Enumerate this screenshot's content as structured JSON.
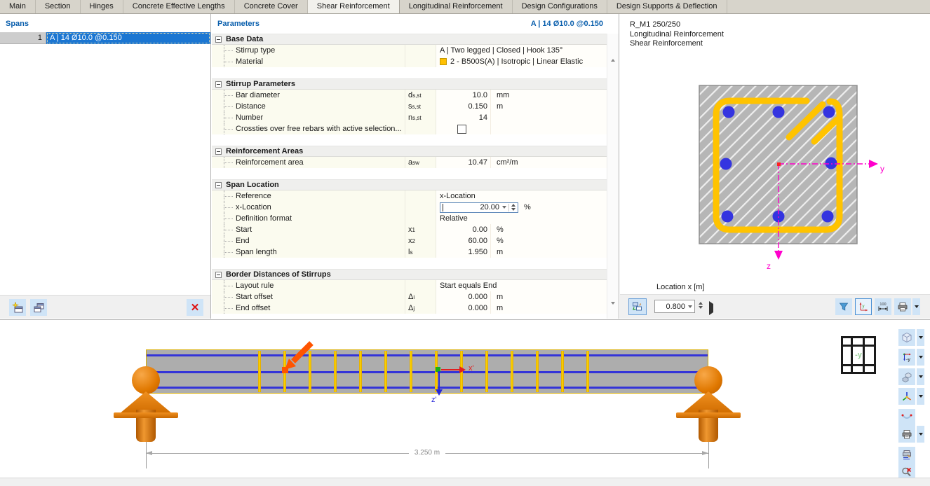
{
  "tabs": [
    {
      "label": "Main"
    },
    {
      "label": "Section"
    },
    {
      "label": "Hinges"
    },
    {
      "label": "Concrete Effective Lengths"
    },
    {
      "label": "Concrete Cover"
    },
    {
      "label": "Shear Reinforcement",
      "active": true
    },
    {
      "label": "Longitudinal Reinforcement"
    },
    {
      "label": "Design Configurations"
    },
    {
      "label": "Design Supports & Deflection"
    }
  ],
  "spans": {
    "title": "Spans",
    "rows": [
      {
        "num": "1",
        "label": "A | 14 Ø10.0 @0.150"
      }
    ]
  },
  "parameters": {
    "title": "Parameters",
    "selection": "A | 14 Ø10.0 @0.150",
    "groups": [
      {
        "title": "Base Data",
        "rows": [
          {
            "label": "Stirrup type",
            "value": "A | Two legged | Closed | Hook 135°"
          },
          {
            "label": "Material",
            "value": "2 - B500S(A) | Isotropic | Linear Elastic",
            "swatch": "#ffc000"
          }
        ]
      },
      {
        "title": "Stirrup Parameters",
        "rows": [
          {
            "label": "Bar diameter",
            "sym": "d",
            "sub": "s,st",
            "value": "10.0",
            "unit": "mm"
          },
          {
            "label": "Distance",
            "sym": "s",
            "sub": "s,st",
            "value": "0.150",
            "unit": "m"
          },
          {
            "label": "Number",
            "sym": "n",
            "sub": "s,st",
            "value": "14",
            "unit": ""
          },
          {
            "label": "Crossties over free rebars with active selection...",
            "checkbox": "unchecked"
          }
        ]
      },
      {
        "title": "Reinforcement Areas",
        "rows": [
          {
            "label": "Reinforcement area",
            "sym": "a",
            "sub": "sw",
            "value": "10.47",
            "unit": "cm²/m"
          }
        ]
      },
      {
        "title": "Span Location",
        "rows": [
          {
            "label": "Reference",
            "value": "x-Location"
          },
          {
            "label": "x-Location",
            "input": "20.00",
            "unit": "%"
          },
          {
            "label": "Definition format",
            "value": "Relative"
          },
          {
            "label": "Start",
            "sym": "x",
            "sub": "1",
            "value": "0.00",
            "unit": "%"
          },
          {
            "label": "End",
            "sym": "x",
            "sub": "2",
            "value": "60.00",
            "unit": "%"
          },
          {
            "label": "Span length",
            "sym": "l",
            "sub": "s",
            "value": "1.950",
            "unit": "m"
          }
        ]
      },
      {
        "title": "Border Distances of Stirrups",
        "rows": [
          {
            "label": "Layout rule",
            "value": "Start equals End"
          },
          {
            "label": "Start offset",
            "sym": "Δ",
            "sub": "i",
            "value": "0.000",
            "unit": "m"
          },
          {
            "label": "End offset",
            "sym": "Δ",
            "sub": "j",
            "value": "0.000",
            "unit": "m"
          }
        ]
      }
    ]
  },
  "section_view": {
    "line1": "R_M1 250/250",
    "line2": "Longitudinal Reinforcement",
    "line3": "Shear Reinforcement",
    "axis_y": "y",
    "axis_z": "z",
    "location_label": "Location x [m]",
    "location_value": "0.800"
  },
  "beam_view": {
    "dimension_label": "3.250 m",
    "axis_x_label": "x'",
    "axis_z_label": "z'",
    "stirrup_count": 14,
    "view_label": "-y"
  },
  "colors": {
    "selection_blue": "#1b76d2",
    "material_yellow": "#ffc000",
    "stirrup_yellow": "#ffc300",
    "rebar_blue": "#3434d8",
    "axis_magenta": "#ff00cc",
    "support_orange": "#e07800",
    "location_arrow_orange": "#ff5400"
  }
}
